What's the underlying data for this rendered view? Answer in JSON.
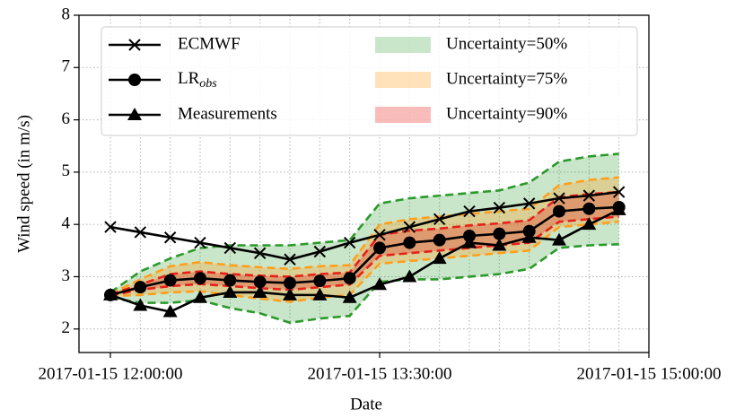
{
  "chart_data": {
    "type": "line",
    "x_label": "Date",
    "y_label": "Wind speed (in m/s)",
    "x": [
      "2017-01-15 12:00:00",
      "2017-01-15 12:10:00",
      "2017-01-15 12:20:00",
      "2017-01-15 12:30:00",
      "2017-01-15 12:40:00",
      "2017-01-15 12:50:00",
      "2017-01-15 13:00:00",
      "2017-01-15 13:10:00",
      "2017-01-15 13:20:00",
      "2017-01-15 13:30:00",
      "2017-01-15 13:40:00",
      "2017-01-15 13:50:00",
      "2017-01-15 14:00:00",
      "2017-01-15 14:10:00",
      "2017-01-15 14:20:00",
      "2017-01-15 14:30:00",
      "2017-01-15 14:40:00",
      "2017-01-15 14:50:00"
    ],
    "xlim": [
      "2017-01-15 11:49:30",
      "2017-01-15 15:00:00"
    ],
    "xticks": [
      "2017-01-15 12:00:00",
      "2017-01-15 13:30:00",
      "2017-01-15 15:00:00"
    ],
    "ylim": [
      1.55,
      8
    ],
    "yticks": [
      2,
      3,
      4,
      5,
      6,
      7,
      8
    ],
    "grid": true,
    "legend": "upper",
    "bands": [
      {
        "name": "Uncertainty=50%",
        "color": "#2a9a2a",
        "upper": [
          2.7,
          3.1,
          3.35,
          3.55,
          3.6,
          3.6,
          3.6,
          3.65,
          3.7,
          4.4,
          4.5,
          4.55,
          4.6,
          4.65,
          4.8,
          5.2,
          5.3,
          5.35
        ],
        "lower": [
          2.6,
          2.5,
          2.5,
          2.55,
          2.4,
          2.3,
          2.12,
          2.2,
          2.25,
          2.9,
          2.95,
          2.95,
          3.0,
          3.05,
          3.15,
          3.55,
          3.6,
          3.62
        ]
      },
      {
        "name": "Uncertainty=75%",
        "color": "#ff9f1c",
        "upper": [
          2.67,
          2.95,
          3.2,
          3.28,
          3.22,
          3.18,
          3.15,
          3.2,
          3.22,
          4.0,
          4.1,
          4.15,
          4.2,
          4.25,
          4.3,
          4.75,
          4.85,
          4.9
        ],
        "lower": [
          2.63,
          2.65,
          2.7,
          2.72,
          2.65,
          2.58,
          2.52,
          2.6,
          2.65,
          3.25,
          3.3,
          3.35,
          3.4,
          3.45,
          3.5,
          3.95,
          4.0,
          4.05
        ]
      },
      {
        "name": "Uncertainty=90%",
        "color": "#e8201a",
        "upper": [
          2.66,
          2.85,
          3.05,
          3.1,
          3.05,
          3.02,
          3.0,
          3.05,
          3.08,
          3.8,
          3.88,
          3.92,
          3.98,
          4.02,
          4.08,
          4.52,
          4.58,
          4.62
        ],
        "lower": [
          2.64,
          2.75,
          2.82,
          2.86,
          2.82,
          2.78,
          2.75,
          2.8,
          2.85,
          3.4,
          3.45,
          3.5,
          3.55,
          3.6,
          3.65,
          4.05,
          4.1,
          4.15
        ]
      }
    ],
    "series": [
      {
        "name": "ECMWF",
        "color": "#000000",
        "marker": "x",
        "values": [
          3.95,
          3.85,
          3.75,
          3.65,
          3.55,
          3.45,
          3.33,
          3.48,
          3.65,
          3.8,
          3.95,
          4.1,
          4.25,
          4.32,
          4.4,
          4.5,
          4.55,
          4.62
        ]
      },
      {
        "name": "LR_obs",
        "color": "#000000",
        "marker": "o",
        "values": [
          2.65,
          2.8,
          2.93,
          2.97,
          2.93,
          2.9,
          2.88,
          2.92,
          2.97,
          3.55,
          3.65,
          3.7,
          3.78,
          3.82,
          3.87,
          4.25,
          4.3,
          4.33
        ]
      },
      {
        "name": "Measurements",
        "color": "#000000",
        "marker": "^",
        "values": [
          2.65,
          2.45,
          2.33,
          2.6,
          2.7,
          2.7,
          2.65,
          2.65,
          2.6,
          2.85,
          3.0,
          3.35,
          3.65,
          3.6,
          3.75,
          3.7,
          4.0,
          4.28
        ]
      }
    ]
  }
}
